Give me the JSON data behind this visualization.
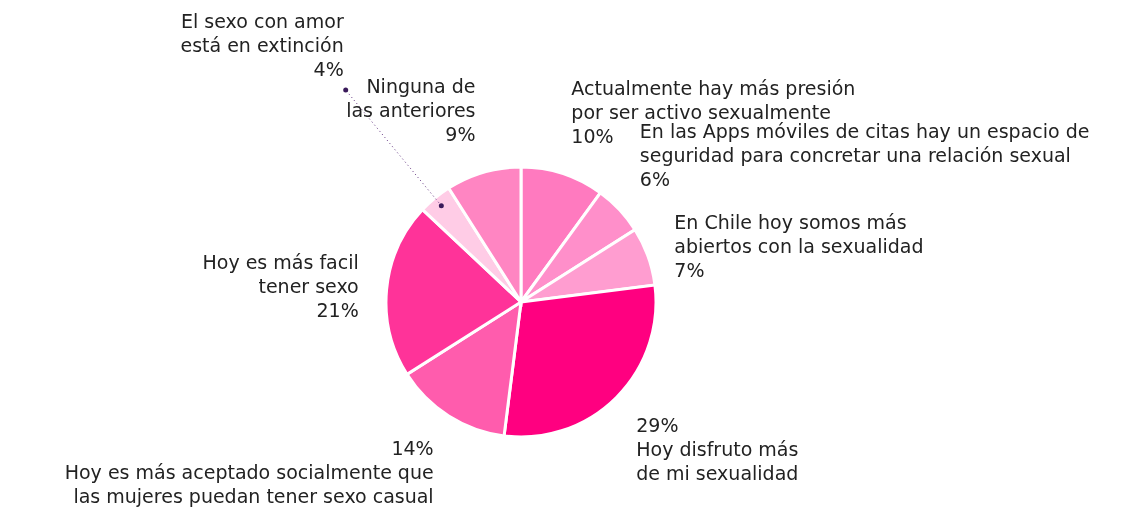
{
  "chart_data": {
    "type": "pie",
    "categories": [
      "Actualmente hay más presión\npor ser activo sexualmente",
      "En las Apps móviles de citas hay un espacio de\nseguridad para concretar una relación sexual",
      "En Chile hoy somos más\nabiertos con la sexualidad",
      "Hoy disfruto más\nde mi sexualidad",
      "Hoy es más aceptado socialmente que\nlas mujeres puedan tener sexo casual",
      "Hoy es más facil\ntener sexo",
      "El sexo con amor\nestá en extinción",
      "Ninguna de\nlas anteriores"
    ],
    "values": [
      10,
      6,
      7,
      29,
      14,
      21,
      4,
      9
    ],
    "value_labels": [
      "10%",
      "6%",
      "7%",
      "29%",
      "14%",
      "21%",
      "4%",
      "9%"
    ],
    "colors": [
      "#ff7abf",
      "#ff8fca",
      "#ff9dd0",
      "#ff0080",
      "#ff5cad",
      "#ff3399",
      "#ffcce6",
      "#ff85c2"
    ],
    "legend": false
  }
}
